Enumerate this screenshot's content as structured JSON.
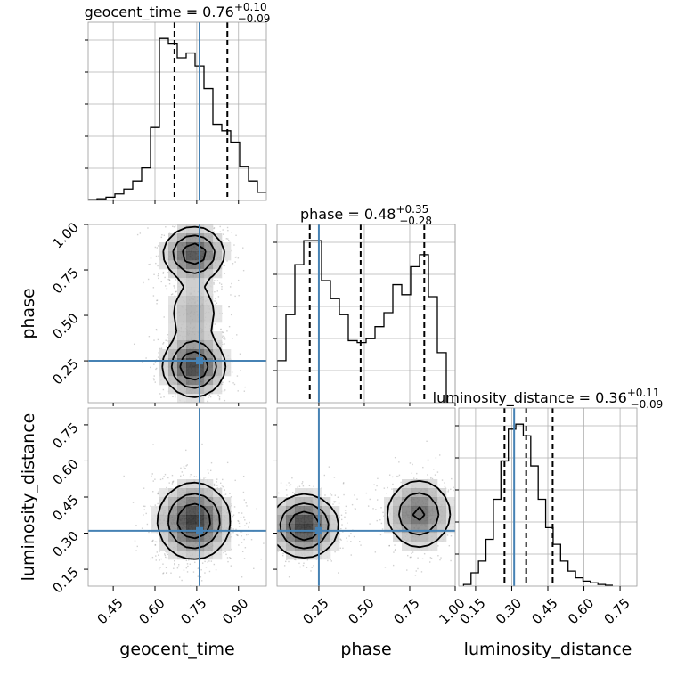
{
  "chart_data": {
    "type": "corner",
    "parameters": [
      {
        "name": "geocent_time",
        "label": "geocent_time",
        "range": [
          0.36,
          1.0
        ],
        "ticks": [
          0.45,
          0.6,
          0.75,
          0.9
        ],
        "tick_labels": [
          "0.45",
          "0.60",
          "0.75",
          "0.90"
        ],
        "title_prefix": "geocent_time = 0.76",
        "title_plus": "+0.10",
        "title_minus": "−0.09",
        "median": 0.76,
        "q_low": 0.67,
        "q_high": 0.86,
        "truth": 0.76,
        "hist_edges_start": 0.36,
        "hist_bin_width": 0.032,
        "hist_counts": [
          0.5,
          1,
          2,
          4,
          7,
          12,
          20,
          45,
          100,
          97,
          88,
          91,
          83,
          69,
          47,
          43,
          36,
          21,
          12,
          5
        ]
      },
      {
        "name": "phase",
        "label": "phase",
        "range": [
          0.02,
          1.0
        ],
        "ticks": [
          0.25,
          0.5,
          0.75,
          1.0
        ],
        "tick_labels": [
          "0.25",
          "0.50",
          "0.75",
          "1.00"
        ],
        "title_prefix": "phase = 0.48",
        "title_plus": "+0.35",
        "title_minus": "−0.28",
        "median": 0.48,
        "q_low": 0.2,
        "q_high": 0.83,
        "truth": 0.25,
        "hist_edges_start": 0.02,
        "hist_bin_width": 0.049,
        "hist_counts": [
          21,
          44,
          69,
          81,
          81,
          61,
          52,
          44,
          31,
          30,
          32,
          38,
          45,
          59,
          54,
          68,
          74,
          53,
          25,
          0
        ]
      },
      {
        "name": "luminosity_distance",
        "label": "luminosity_distance",
        "range": [
          0.08,
          0.82
        ],
        "ticks": [
          0.15,
          0.3,
          0.45,
          0.6,
          0.75
        ],
        "tick_labels": [
          "0.15",
          "0.30",
          "0.45",
          "0.60",
          "0.75"
        ],
        "yticks": [
          0.15,
          0.3,
          0.45,
          0.6,
          0.75
        ],
        "ytick_labels": [
          "0.15",
          "0.30",
          "0.45",
          "0.60",
          "0.75"
        ],
        "title_prefix": "luminosity_distance = 0.36",
        "title_plus": "+0.11",
        "title_minus": "−0.09",
        "median": 0.36,
        "q_low": 0.27,
        "q_high": 0.47,
        "truth": 0.31,
        "hist_edges_start": 0.1,
        "hist_bin_width": 0.031,
        "hist_counts": [
          1,
          8,
          15,
          28,
          52,
          75,
          94,
          97,
          90,
          72,
          52,
          35,
          25,
          15,
          9,
          5,
          3,
          2,
          1,
          0.5
        ]
      }
    ],
    "phase_yticks": [
      0.25,
      0.5,
      0.75,
      1.0
    ],
    "phase_ytick_labels": [
      "0.25",
      "0.50",
      "0.75",
      "1.00"
    ],
    "levels": 3,
    "colors": {
      "truth": "#4682b4",
      "hist": "#000000",
      "density": "#000000"
    }
  }
}
